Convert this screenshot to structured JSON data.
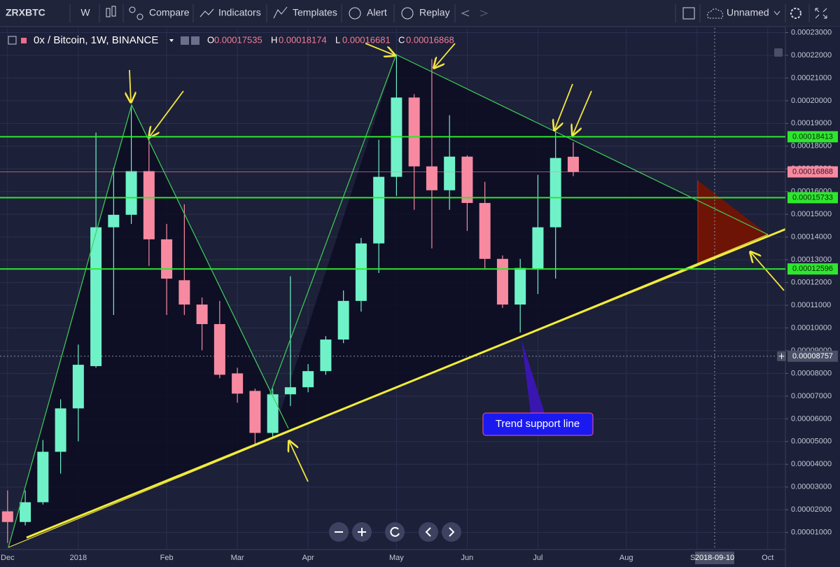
{
  "toolbar": {
    "symbol": "ZRXBTC",
    "interval": "W",
    "compare": "Compare",
    "indicators": "Indicators",
    "templates": "Templates",
    "alert": "Alert",
    "replay": "Replay",
    "layout_name": "Unnamed"
  },
  "chart_data": {
    "type": "candlestick",
    "title": "0x / Bitcoin, 1W, BINANCE",
    "ohlc_prefixes": [
      "O",
      "H",
      "L",
      "C"
    ],
    "x": [
      "2017-12-04",
      "2017-12-11",
      "2017-12-18",
      "2017-12-25",
      "2018-01-01",
      "2018-01-08",
      "2018-01-15",
      "2018-01-22",
      "2018-01-29",
      "2018-02-05",
      "2018-02-12",
      "2018-02-19",
      "2018-02-26",
      "2018-03-05",
      "2018-03-12",
      "2018-03-19",
      "2018-03-26",
      "2018-04-02",
      "2018-04-09",
      "2018-04-16",
      "2018-04-23",
      "2018-04-30",
      "2018-05-07",
      "2018-05-14",
      "2018-05-21",
      "2018-05-28",
      "2018-06-04",
      "2018-06-11",
      "2018-06-18",
      "2018-06-25",
      "2018-07-02",
      "2018-07-09",
      "2018-07-16"
    ],
    "open": [
      1.93e-05,
      1.46e-05,
      2.33e-05,
      4.55e-05,
      6.46e-05,
      8.32e-05,
      0.0001443,
      0.0001498,
      0.000169,
      0.000139,
      0.000121,
      0.0001103,
      0.0001017,
      8e-05,
      7.23e-05,
      5.38e-05,
      7.08e-05,
      7.39e-05,
      8.1e-05,
      9.49e-05,
      0.0001119,
      0.0001372,
      0.0001665,
      0.0002014,
      0.0001711,
      0.0001606,
      0.0001754,
      0.000155,
      0.0001304,
      0.0001103,
      0.0001257,
      0.0001443,
      0.00017535
    ],
    "high": [
      2.85e-05,
      2.85e-05,
      5.07e-05,
      6.86e-05,
      9.27e-05,
      0.000186,
      0.0001705,
      0.0001977,
      0.0001844,
      0.0001458,
      0.0001544,
      0.0001134,
      0.0001119,
      8.25e-05,
      7.33e-05,
      7.33e-05,
      0.0001227,
      8.41e-05,
      9.64e-05,
      0.0001165,
      0.0001396,
      0.0001828,
      0.0002205,
      0.0002029,
      0.0002183,
      0.0001936,
      0.000176,
      0.0001643,
      0.0001319,
      0.0001304,
      0.0001674,
      0.0001865,
      0.00018174
    ],
    "low": [
      5.4e-06,
      1.31e-05,
      2.23e-05,
      3.59e-05,
      5.01e-05,
      8.25e-05,
      0.0001057,
      0.0001458,
      0.0001273,
      0.0001057,
      0.0001057,
      9.02e-05,
      7.79e-05,
      6.71e-05,
      4.86e-05,
      5.17e-05,
      6.56e-05,
      7.17e-05,
      7.94e-05,
      9.33e-05,
      0.0001072,
      0.0001242,
      0.0001581,
      0.000152,
      0.000135,
      0.000152,
      0.0001427,
      0.0001257,
      0.0001088,
      9.8e-05,
      0.0001149,
      0.0001217,
      0.00016681
    ],
    "close": [
      1.46e-05,
      2.33e-05,
      4.55e-05,
      6.46e-05,
      8.38e-05,
      0.0001443,
      0.0001498,
      0.000169,
      0.000139,
      0.0001217,
      0.0001103,
      0.0001017,
      7.94e-05,
      7.11e-05,
      5.38e-05,
      7.08e-05,
      7.39e-05,
      8.1e-05,
      9.49e-05,
      0.0001119,
      0.0001372,
      0.0001665,
      0.0002014,
      0.0001711,
      0.0001606,
      0.0001754,
      0.000155,
      0.0001304,
      0.0001103,
      0.0001264,
      0.0001443,
      0.0001748,
      0.00016868
    ],
    "up_color": "#6ff2c8",
    "down_color": "#f78aa0",
    "xlim": [
      "2017-12-01",
      "2018-10-08"
    ],
    "xticks": [
      {
        "value": "2017-12-04",
        "label": "Dec"
      },
      {
        "value": "2018-01-01",
        "label": "2018"
      },
      {
        "value": "2018-02-05",
        "label": "Feb"
      },
      {
        "value": "2018-03-05",
        "label": "Mar"
      },
      {
        "value": "2018-04-02",
        "label": "Apr"
      },
      {
        "value": "2018-05-07",
        "label": "May"
      },
      {
        "value": "2018-06-04",
        "label": "Jun"
      },
      {
        "value": "2018-07-02",
        "label": "Jul"
      },
      {
        "value": "2018-08-06",
        "label": "Aug"
      },
      {
        "value": "2018-09-03",
        "label": "Sep"
      },
      {
        "value": "2018-10-01",
        "label": "Oct"
      }
    ],
    "ylim": [
      2.5e-06,
      0.000232
    ],
    "yticks": [
      {
        "value": 1e-05,
        "label": "0.00001000"
      },
      {
        "value": 2e-05,
        "label": "0.00002000"
      },
      {
        "value": 3e-05,
        "label": "0.00003000"
      },
      {
        "value": 4e-05,
        "label": "0.00004000"
      },
      {
        "value": 5e-05,
        "label": "0.00005000"
      },
      {
        "value": 6e-05,
        "label": "0.00006000"
      },
      {
        "value": 7e-05,
        "label": "0.00007000"
      },
      {
        "value": 8e-05,
        "label": "0.00008000"
      },
      {
        "value": 9e-05,
        "label": "0.00009000"
      },
      {
        "value": 0.0001,
        "label": "0.00010000"
      },
      {
        "value": 0.00011,
        "label": "0.00011000"
      },
      {
        "value": 0.00012,
        "label": "0.00012000"
      },
      {
        "value": 0.00013,
        "label": "0.00013000"
      },
      {
        "value": 0.00014,
        "label": "0.00014000"
      },
      {
        "value": 0.00015,
        "label": "0.00015000"
      },
      {
        "value": 0.00016,
        "label": "0.00016000"
      },
      {
        "value": 0.00017,
        "label": "0.00017000"
      },
      {
        "value": 0.00018,
        "label": "0.00018000"
      },
      {
        "value": 0.00019,
        "label": "0.00019000"
      },
      {
        "value": 0.0002,
        "label": "0.00020000"
      },
      {
        "value": 0.00021,
        "label": "0.00021000"
      },
      {
        "value": 0.00022,
        "label": "0.00022000"
      },
      {
        "value": 0.00023,
        "label": "0.00023000"
      }
    ],
    "grid": true,
    "levels": [
      {
        "value": 0.00018413,
        "color": "#2ee62e"
      },
      {
        "value": 0.00015733,
        "color": "#2ee62e"
      },
      {
        "value": 0.00012596,
        "color": "#2ee62e"
      }
    ],
    "crosshair": {
      "x": "2018-09-10",
      "y": 8.757e-05
    },
    "annotation": "Trend support line"
  }
}
